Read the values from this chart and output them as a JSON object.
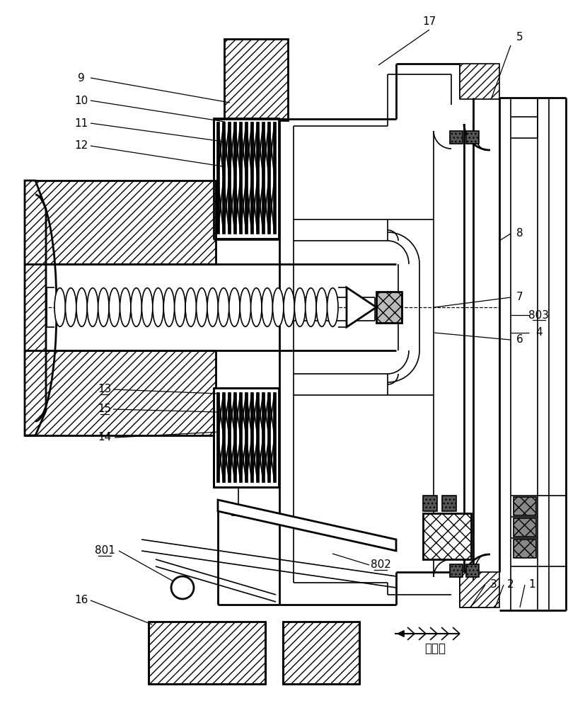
{
  "bg": "#ffffff",
  "lc": "#000000",
  "arrow_label": "进气口",
  "fig_w": 8.04,
  "fig_h": 10.0,
  "dpi": 100
}
